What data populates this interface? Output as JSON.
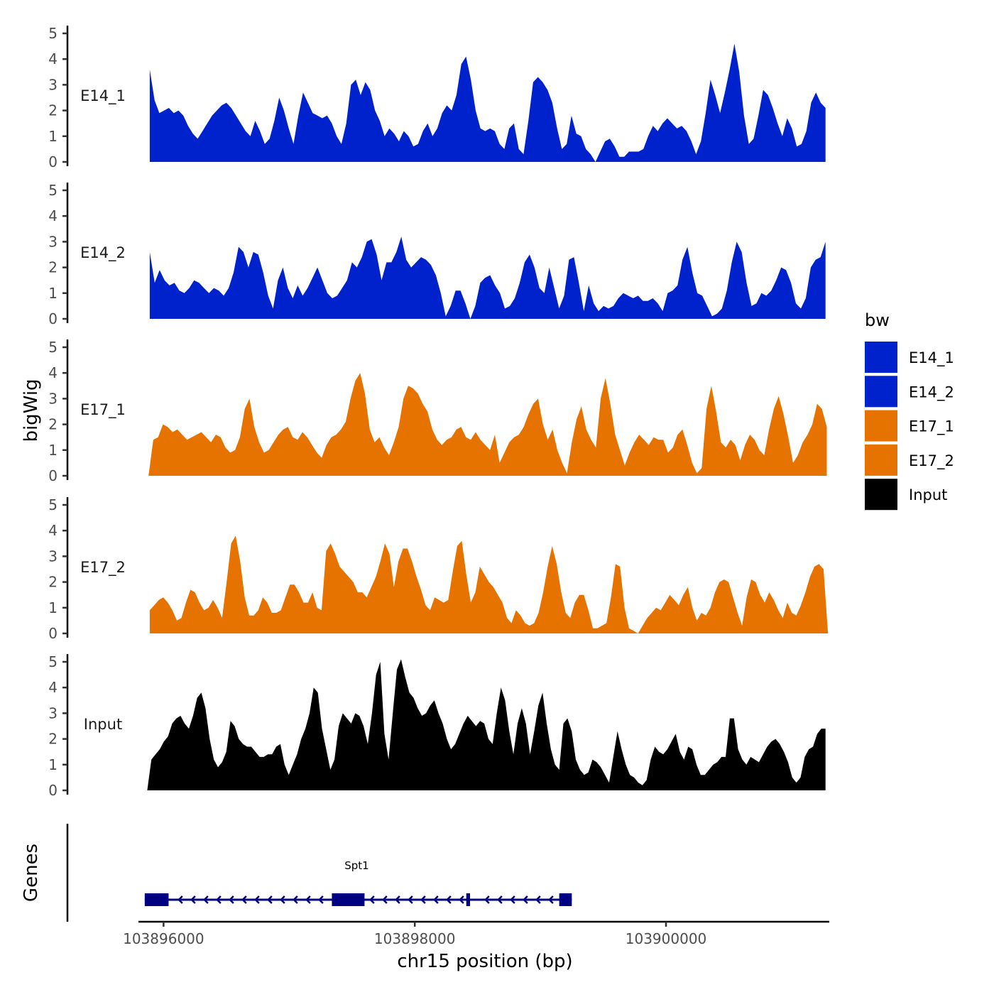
{
  "chart_data": {
    "type": "area",
    "title": "",
    "ylabel": "bigWig",
    "xlabel": "chr15 position (bp)",
    "ylim": [
      0,
      5.3
    ],
    "xlim": [
      103895800,
      103901300
    ],
    "y_ticks": [
      "0",
      "1",
      "2",
      "3",
      "4",
      "5"
    ],
    "x_ticks": [
      {
        "value": 103896000,
        "label": "103896000"
      },
      {
        "value": 103898000,
        "label": "103898000"
      },
      {
        "value": 103900000,
        "label": "103900000"
      }
    ],
    "gene_track_label": "Genes",
    "tracks": [
      {
        "name": "E14_1",
        "color": "#0022CC",
        "start": 103895890,
        "end": 103901270,
        "values": [
          3.6,
          2.4,
          1.9,
          2.0,
          2.1,
          1.9,
          2.0,
          1.8,
          1.4,
          1.1,
          0.9,
          1.2,
          1.5,
          1.8,
          2.0,
          2.2,
          2.3,
          2.1,
          1.8,
          1.5,
          1.2,
          1.0,
          1.6,
          1.2,
          0.7,
          0.9,
          1.6,
          2.5,
          2.0,
          1.3,
          0.7,
          1.8,
          2.7,
          2.3,
          1.9,
          1.8,
          1.7,
          1.8,
          1.5,
          1.0,
          0.7,
          1.5,
          3.0,
          3.2,
          2.6,
          3.1,
          2.8,
          2.0,
          1.6,
          1.0,
          1.3,
          1.1,
          0.8,
          1.2,
          1.0,
          0.6,
          0.7,
          1.2,
          1.5,
          1.0,
          1.3,
          1.9,
          2.2,
          2.0,
          2.6,
          3.8,
          4.1,
          3.2,
          2.0,
          1.3,
          1.2,
          1.3,
          1.2,
          0.7,
          0.5,
          1.3,
          1.5,
          0.5,
          0.3,
          1.6,
          3.1,
          3.3,
          3.1,
          2.8,
          2.3,
          1.3,
          0.5,
          0.7,
          1.8,
          1.1,
          1.0,
          0.5,
          0.3,
          0.0,
          0.4,
          0.8,
          0.9,
          0.6,
          0.2,
          0.2,
          0.4,
          0.4,
          0.4,
          0.5,
          1.0,
          1.4,
          1.2,
          1.5,
          1.7,
          1.5,
          1.3,
          1.4,
          1.2,
          0.8,
          0.3,
          0.8,
          1.9,
          3.2,
          2.6,
          1.9,
          2.7,
          3.6,
          4.6,
          3.5,
          1.8,
          0.7,
          0.9,
          1.8,
          2.8,
          2.6,
          2.1,
          1.5,
          1.0,
          1.7,
          1.3,
          0.6,
          0.7,
          1.2,
          2.3,
          2.7,
          2.3,
          2.1
        ]
      },
      {
        "name": "E14_2",
        "color": "#0022CC",
        "start": 103895890,
        "end": 103901270,
        "values": [
          2.6,
          1.4,
          1.9,
          1.5,
          1.3,
          1.4,
          1.1,
          1.0,
          1.2,
          1.5,
          1.4,
          1.2,
          1.0,
          1.2,
          1.1,
          0.9,
          1.2,
          1.8,
          2.8,
          2.6,
          2.0,
          2.6,
          2.5,
          1.8,
          0.9,
          0.4,
          1.5,
          2.0,
          1.2,
          0.8,
          1.3,
          0.9,
          1.2,
          1.6,
          2.0,
          1.5,
          1.0,
          0.8,
          0.9,
          1.2,
          1.5,
          2.2,
          2.0,
          2.4,
          3.0,
          3.1,
          2.5,
          1.5,
          2.2,
          2.2,
          2.6,
          3.2,
          2.3,
          2.0,
          2.2,
          2.4,
          2.3,
          2.1,
          1.7,
          1.0,
          0.1,
          0.5,
          1.1,
          1.1,
          0.6,
          0.0,
          0.5,
          1.4,
          1.6,
          1.7,
          1.3,
          1.0,
          0.4,
          0.5,
          0.8,
          1.4,
          2.2,
          2.5,
          2.0,
          1.2,
          1.0,
          2.0,
          1.2,
          0.4,
          0.9,
          2.3,
          2.4,
          1.4,
          0.3,
          1.3,
          0.6,
          0.3,
          0.5,
          0.4,
          0.5,
          0.8,
          1.0,
          0.9,
          0.8,
          0.9,
          0.7,
          0.7,
          0.8,
          0.6,
          0.3,
          1.0,
          1.1,
          1.3,
          2.3,
          2.8,
          1.8,
          1.0,
          0.9,
          0.5,
          0.1,
          0.2,
          0.4,
          1.1,
          2.2,
          3.0,
          2.6,
          1.4,
          0.5,
          0.6,
          1.0,
          0.9,
          1.1,
          1.5,
          2.0,
          1.9,
          1.4,
          0.6,
          0.4,
          0.8,
          2.0,
          2.3,
          2.4,
          3.0
        ]
      },
      {
        "name": "E17_1",
        "color": "#E67300",
        "start": 103895880,
        "end": 103901280,
        "values": [
          0.0,
          1.4,
          1.5,
          2.0,
          1.9,
          1.7,
          1.8,
          1.6,
          1.4,
          1.5,
          1.6,
          1.7,
          1.5,
          1.3,
          1.6,
          1.5,
          1.1,
          0.9,
          1.0,
          1.5,
          2.6,
          3.0,
          1.9,
          1.3,
          0.9,
          1.0,
          1.3,
          1.6,
          1.8,
          1.9,
          1.5,
          1.4,
          1.7,
          1.5,
          1.2,
          0.9,
          0.7,
          1.2,
          1.5,
          1.6,
          1.8,
          2.1,
          3.0,
          3.7,
          4.0,
          3.2,
          1.8,
          1.3,
          1.5,
          1.1,
          0.8,
          1.3,
          1.9,
          3.0,
          3.5,
          3.4,
          3.2,
          2.8,
          2.5,
          1.8,
          1.4,
          1.2,
          1.4,
          1.5,
          1.8,
          1.9,
          1.5,
          1.4,
          1.7,
          1.4,
          1.2,
          1.0,
          1.6,
          0.5,
          0.9,
          1.3,
          1.5,
          1.6,
          1.9,
          2.4,
          2.8,
          3.0,
          2.0,
          1.4,
          1.8,
          1.0,
          0.5,
          0.1,
          1.3,
          2.2,
          2.7,
          1.8,
          1.4,
          1.1,
          3.0,
          3.8,
          2.8,
          1.6,
          1.0,
          0.4,
          0.9,
          1.3,
          1.6,
          1.4,
          1.2,
          1.5,
          1.4,
          1.4,
          0.9,
          1.1,
          1.6,
          1.8,
          1.2,
          0.5,
          0.1,
          0.3,
          2.6,
          3.5,
          2.5,
          1.3,
          1.1,
          1.4,
          1.2,
          0.6,
          1.2,
          1.6,
          1.4,
          1.0,
          0.8,
          1.8,
          2.6,
          3.1,
          2.4,
          1.5,
          0.5,
          0.8,
          1.3,
          1.6,
          2.0,
          2.8,
          2.6,
          1.9
        ]
      },
      {
        "name": "E17_2",
        "color": "#E67300",
        "start": 103895890,
        "end": 103901290,
        "values": [
          0.9,
          1.1,
          1.3,
          1.4,
          1.2,
          0.9,
          0.5,
          0.6,
          1.2,
          1.7,
          1.6,
          1.2,
          0.9,
          1.0,
          1.3,
          1.0,
          0.6,
          2.0,
          3.5,
          3.8,
          2.8,
          1.4,
          0.7,
          0.7,
          0.9,
          1.4,
          1.2,
          0.8,
          0.8,
          0.9,
          1.4,
          1.9,
          1.9,
          1.6,
          1.2,
          1.2,
          1.6,
          1.0,
          0.9,
          3.2,
          3.5,
          3.1,
          2.6,
          2.4,
          2.2,
          2.0,
          1.6,
          1.6,
          1.4,
          1.8,
          2.2,
          2.8,
          3.5,
          3.1,
          1.8,
          2.8,
          3.3,
          3.3,
          2.8,
          2.2,
          1.7,
          1.1,
          0.9,
          1.4,
          1.3,
          1.2,
          1.3,
          2.4,
          3.4,
          3.6,
          2.3,
          1.2,
          1.6,
          2.6,
          2.3,
          2.0,
          1.8,
          1.5,
          1.2,
          0.6,
          0.4,
          0.9,
          0.7,
          0.4,
          0.3,
          0.4,
          0.8,
          1.6,
          2.6,
          3.4,
          2.7,
          1.6,
          0.8,
          0.6,
          1.2,
          1.5,
          1.5,
          0.9,
          0.2,
          0.2,
          0.3,
          0.4,
          1.4,
          2.7,
          2.6,
          1.0,
          0.2,
          0.1,
          0.0,
          0.3,
          0.6,
          0.8,
          1.0,
          0.9,
          1.2,
          1.5,
          1.3,
          1.1,
          1.5,
          1.8,
          1.0,
          0.5,
          0.8,
          0.7,
          1.0,
          1.6,
          2.0,
          2.1,
          2.0,
          1.4,
          0.8,
          0.3,
          1.4,
          2.1,
          2.0,
          1.5,
          1.2,
          1.6,
          1.3,
          0.9,
          0.6,
          1.2,
          0.8,
          0.7,
          1.1,
          1.6,
          2.2,
          2.6,
          2.7,
          2.5,
          0.0
        ]
      },
      {
        "name": "Input",
        "color": "#000000",
        "start": 103895870,
        "end": 103901270,
        "values": [
          0.0,
          1.2,
          1.4,
          1.6,
          1.9,
          2.1,
          2.6,
          2.8,
          2.9,
          2.6,
          2.4,
          2.9,
          3.6,
          3.8,
          3.2,
          2.0,
          1.2,
          0.9,
          1.1,
          1.5,
          2.7,
          2.5,
          2.0,
          1.8,
          1.7,
          1.7,
          1.5,
          1.3,
          1.3,
          1.4,
          1.4,
          1.7,
          1.8,
          1.0,
          0.6,
          1.0,
          1.4,
          2.0,
          2.4,
          3.0,
          4.0,
          3.8,
          2.4,
          1.6,
          0.8,
          1.2,
          2.5,
          3.0,
          2.8,
          2.6,
          3.0,
          2.9,
          2.5,
          1.8,
          3.0,
          4.5,
          5.0,
          2.2,
          1.2,
          3.0,
          4.7,
          5.1,
          4.4,
          3.8,
          3.6,
          3.2,
          2.9,
          3.0,
          3.3,
          3.5,
          3.0,
          2.6,
          2.0,
          1.6,
          1.8,
          2.2,
          2.6,
          2.9,
          2.7,
          2.5,
          2.7,
          2.6,
          2.0,
          1.8,
          3.0,
          4.0,
          3.5,
          2.3,
          1.4,
          2.6,
          3.2,
          2.6,
          1.4,
          2.3,
          3.3,
          3.8,
          2.6,
          1.6,
          1.0,
          0.8,
          2.6,
          2.8,
          2.3,
          1.2,
          0.8,
          0.6,
          0.7,
          1.2,
          1.1,
          0.9,
          0.6,
          0.3,
          1.3,
          2.3,
          1.6,
          1.0,
          0.6,
          0.5,
          0.3,
          0.2,
          0.4,
          1.2,
          1.7,
          1.5,
          1.4,
          1.6,
          1.9,
          2.2,
          1.5,
          1.2,
          1.7,
          1.6,
          1.0,
          0.6,
          0.6,
          0.8,
          1.0,
          1.1,
          1.3,
          1.3,
          2.8,
          2.8,
          1.6,
          1.2,
          1.0,
          1.3,
          1.2,
          1.1,
          1.4,
          1.7,
          1.9,
          2.0,
          1.8,
          1.5,
          1.1,
          0.5,
          0.3,
          0.5,
          1.3,
          1.6,
          1.7,
          2.2,
          2.4,
          2.4
        ]
      }
    ],
    "legend": {
      "title": "bw",
      "position": "right",
      "entries": [
        {
          "label": "E14_1",
          "color": "#0022CC"
        },
        {
          "label": "E14_2",
          "color": "#0022CC"
        },
        {
          "label": "E17_1",
          "color": "#E67300"
        },
        {
          "label": "E17_2",
          "color": "#E67300"
        },
        {
          "label": "Input",
          "color": "#000000"
        }
      ]
    },
    "gene": {
      "name": "Spt1",
      "strand": "-",
      "color": "#000080",
      "start": 103895850,
      "end": 103899250,
      "exons": [
        {
          "start": 103895850,
          "end": 103896040
        },
        {
          "start": 103897340,
          "end": 103897600
        },
        {
          "start": 103898410,
          "end": 103898440
        },
        {
          "start": 103899150,
          "end": 103899250
        }
      ]
    }
  }
}
